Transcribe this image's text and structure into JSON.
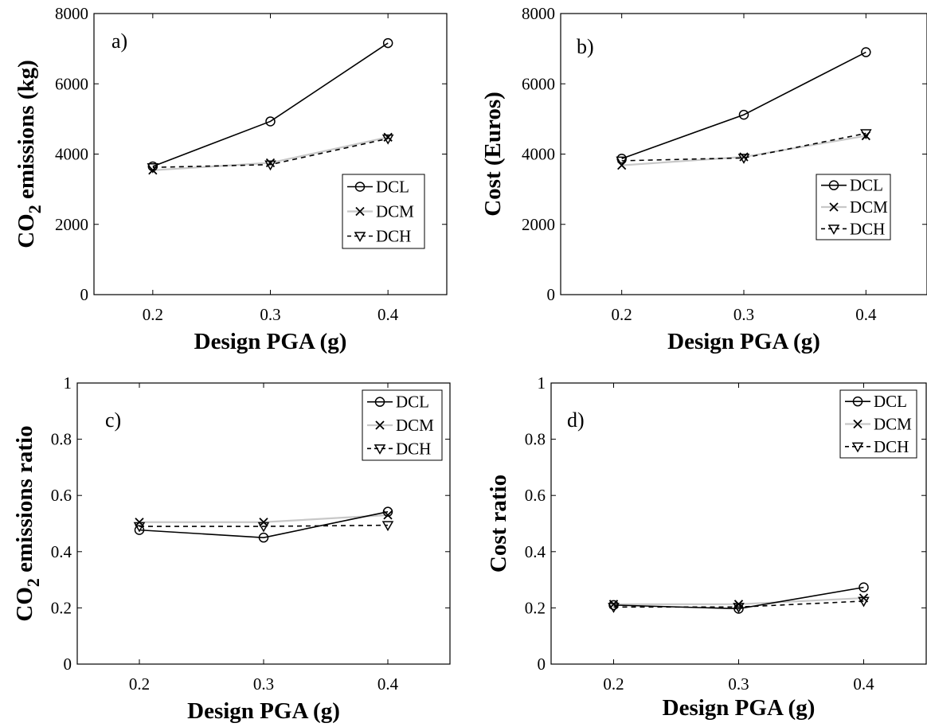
{
  "chart_data": [
    {
      "panel": "a)",
      "type": "line",
      "xlabel": "Design PGA (g)",
      "ylabel_main": "CO",
      "ylabel_sub": "2",
      "ylabel_rest": " emissions (kg)",
      "x": [
        0.2,
        0.3,
        0.4
      ],
      "x_ticks": [
        "0.2",
        "0.3",
        "0.4"
      ],
      "y_ticks": [
        "0",
        "2000",
        "4000",
        "6000",
        "8000"
      ],
      "xlim": [
        0.15,
        0.45
      ],
      "ylim": [
        0,
        8000
      ],
      "legend_position": "right",
      "series": [
        {
          "name": "DCL",
          "values": [
            3650,
            4930,
            7160
          ]
        },
        {
          "name": "DCM",
          "values": [
            3540,
            3750,
            4480
          ]
        },
        {
          "name": "DCH",
          "values": [
            3620,
            3700,
            4440
          ]
        }
      ]
    },
    {
      "panel": "b)",
      "type": "line",
      "xlabel": "Design PGA (g)",
      "ylabel_main": "Cost (Euros)",
      "ylabel_sub": "",
      "ylabel_rest": "",
      "x": [
        0.2,
        0.3,
        0.4
      ],
      "x_ticks": [
        "0.2",
        "0.3",
        "0.4"
      ],
      "y_ticks": [
        "0",
        "2000",
        "4000",
        "6000",
        "8000"
      ],
      "xlim": [
        0.15,
        0.45
      ],
      "ylim": [
        0,
        8000
      ],
      "legend_position": "right",
      "series": [
        {
          "name": "DCL",
          "values": [
            3870,
            5120,
            6900
          ]
        },
        {
          "name": "DCM",
          "values": [
            3680,
            3920,
            4520
          ]
        },
        {
          "name": "DCH",
          "values": [
            3810,
            3890,
            4590
          ]
        }
      ]
    },
    {
      "panel": "c)",
      "type": "line",
      "xlabel": "Design PGA (g)",
      "ylabel_main": "CO",
      "ylabel_sub": "2",
      "ylabel_rest": " emissions ratio",
      "x": [
        0.2,
        0.3,
        0.4
      ],
      "x_ticks": [
        "0.2",
        "0.3",
        "0.4"
      ],
      "y_ticks": [
        "0",
        "0.2",
        "0.4",
        "0.6",
        "0.8",
        "1"
      ],
      "xlim": [
        0.15,
        0.45
      ],
      "ylim": [
        0,
        1
      ],
      "legend_position": "top-right",
      "series": [
        {
          "name": "DCL",
          "values": [
            0.477,
            0.45,
            0.542
          ]
        },
        {
          "name": "DCM",
          "values": [
            0.505,
            0.505,
            0.53
          ]
        },
        {
          "name": "DCH",
          "values": [
            0.49,
            0.49,
            0.494
          ]
        }
      ]
    },
    {
      "panel": "d)",
      "type": "line",
      "xlabel": "Design PGA (g)",
      "ylabel_main": "Cost ratio",
      "ylabel_sub": "",
      "ylabel_rest": "",
      "x": [
        0.2,
        0.3,
        0.4
      ],
      "x_ticks": [
        "0.2",
        "0.3",
        "0.4"
      ],
      "y_ticks": [
        "0",
        "0.2",
        "0.4",
        "0.6",
        "0.8",
        "1"
      ],
      "xlim": [
        0.15,
        0.45
      ],
      "ylim": [
        0,
        1
      ],
      "legend_position": "top-right",
      "series": [
        {
          "name": "DCL",
          "values": [
            0.21,
            0.197,
            0.273
          ]
        },
        {
          "name": "DCM",
          "values": [
            0.213,
            0.213,
            0.235
          ]
        },
        {
          "name": "DCH",
          "values": [
            0.203,
            0.203,
            0.224
          ]
        }
      ]
    }
  ],
  "series_styles": {
    "DCL": {
      "color": "#000000",
      "dash": "",
      "marker": "circle"
    },
    "DCM": {
      "color": "#c8c8c8",
      "dash": "",
      "marker": "x",
      "marker_color": "#000000"
    },
    "DCH": {
      "color": "#000000",
      "dash": "6,5",
      "marker": "triangle-down"
    }
  }
}
